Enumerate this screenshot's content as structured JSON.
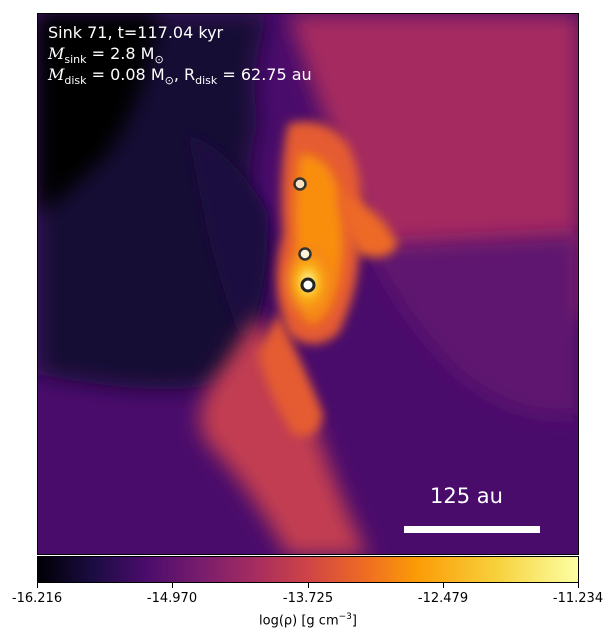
{
  "annotation": {
    "line1": "Sink 71, t=117.04 kyr",
    "line2_prefix": "M",
    "line2_sub": "sink",
    "line2_rest": " = 2.8 M",
    "line2_sun": "⊙",
    "line3_prefix": "M",
    "line3_sub": "disk",
    "line3_mid": " = 0.08 M",
    "line3_sun": "⊙",
    "line3_sep": ", R",
    "line3_sub2": "disk",
    "line3_rest": " = 62.75 au"
  },
  "scale_bar": {
    "label": "125 au"
  },
  "colorbar": {
    "colormap": "inferno",
    "ticks": [
      "-16.216",
      "-14.970",
      "-13.725",
      "-12.479",
      "-11.234"
    ],
    "label_prefix": "log(ρ) [g cm",
    "label_sup": "−3",
    "label_suffix": "]"
  },
  "sinks": [
    {
      "name": "sink-1"
    },
    {
      "name": "sink-2"
    },
    {
      "name": "sink-3"
    }
  ]
}
